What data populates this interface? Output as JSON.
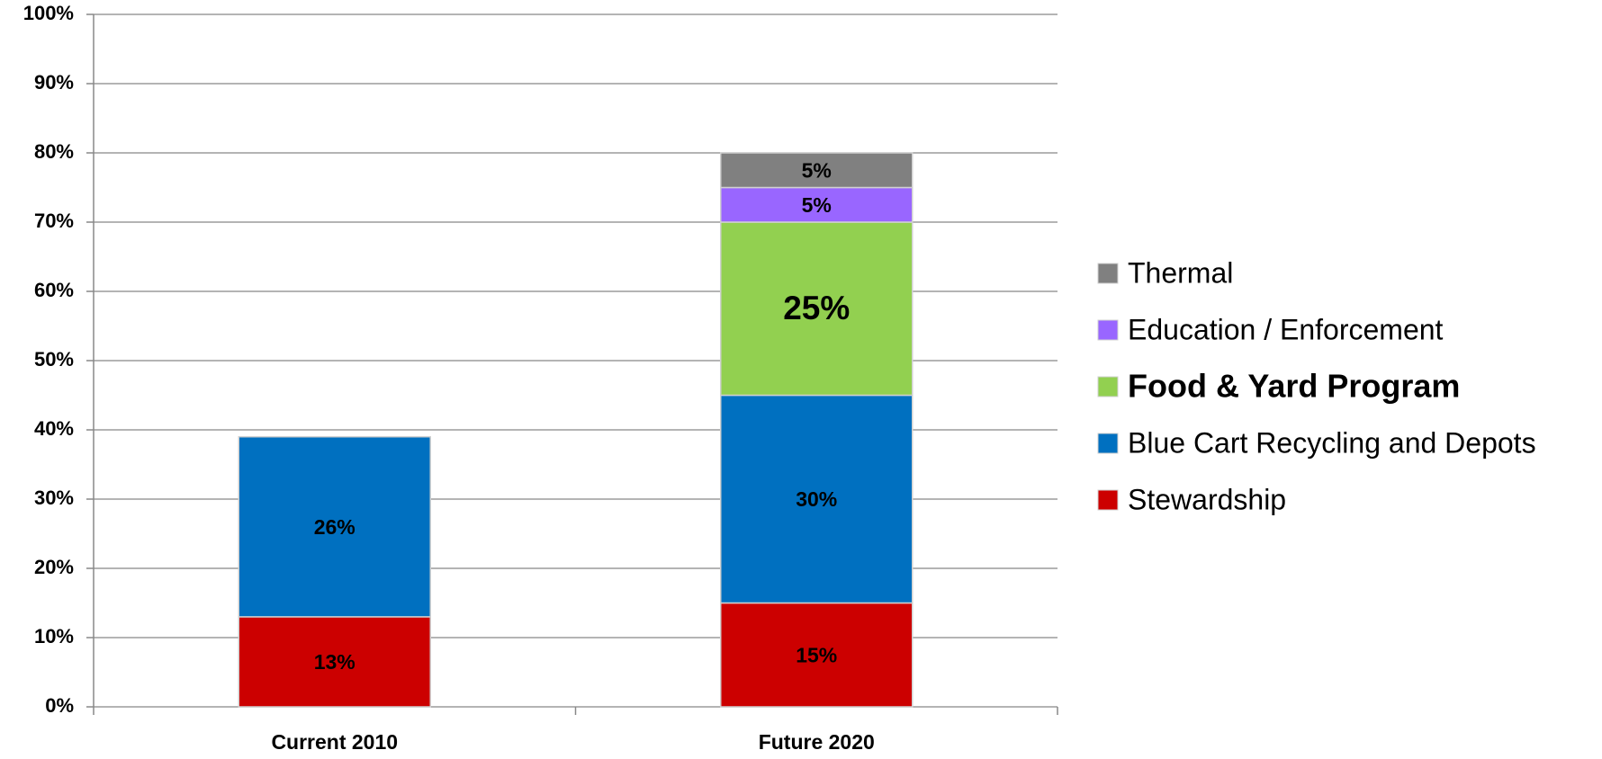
{
  "chart_data": {
    "type": "stacked_bar",
    "categories": [
      "Current 2010",
      "Future 2020"
    ],
    "series": [
      {
        "name": "Stewardship",
        "color": "#cc0000",
        "values": [
          13,
          15
        ],
        "value_labels": [
          "13%",
          "15%"
        ]
      },
      {
        "name": "Blue Cart Recycling and Depots",
        "color": "#0070c0",
        "values": [
          26,
          30
        ],
        "value_labels": [
          "26%",
          "30%"
        ]
      },
      {
        "name": "Food & Yard Program",
        "color": "#92d050",
        "values": [
          null,
          25
        ],
        "value_labels": [
          null,
          "25%"
        ],
        "emphasis": true
      },
      {
        "name": "Education / Enforcement",
        "color": "#9966ff",
        "values": [
          null,
          5
        ],
        "value_labels": [
          null,
          "5%"
        ]
      },
      {
        "name": "Thermal",
        "color": "#808080",
        "values": [
          null,
          5
        ],
        "value_labels": [
          null,
          "5%"
        ]
      }
    ],
    "ylim": [
      0,
      100
    ],
    "yticks": [
      {
        "value": 0,
        "label": "0%"
      },
      {
        "value": 10,
        "label": "10%"
      },
      {
        "value": 20,
        "label": "20%"
      },
      {
        "value": 30,
        "label": "30%"
      },
      {
        "value": 40,
        "label": "40%"
      },
      {
        "value": 50,
        "label": "50%"
      },
      {
        "value": 60,
        "label": "60%"
      },
      {
        "value": 70,
        "label": "70%"
      },
      {
        "value": 80,
        "label": "80%"
      },
      {
        "value": 90,
        "label": "90%"
      },
      {
        "value": 100,
        "label": "100%"
      }
    ],
    "grid": true,
    "legend": "right"
  }
}
